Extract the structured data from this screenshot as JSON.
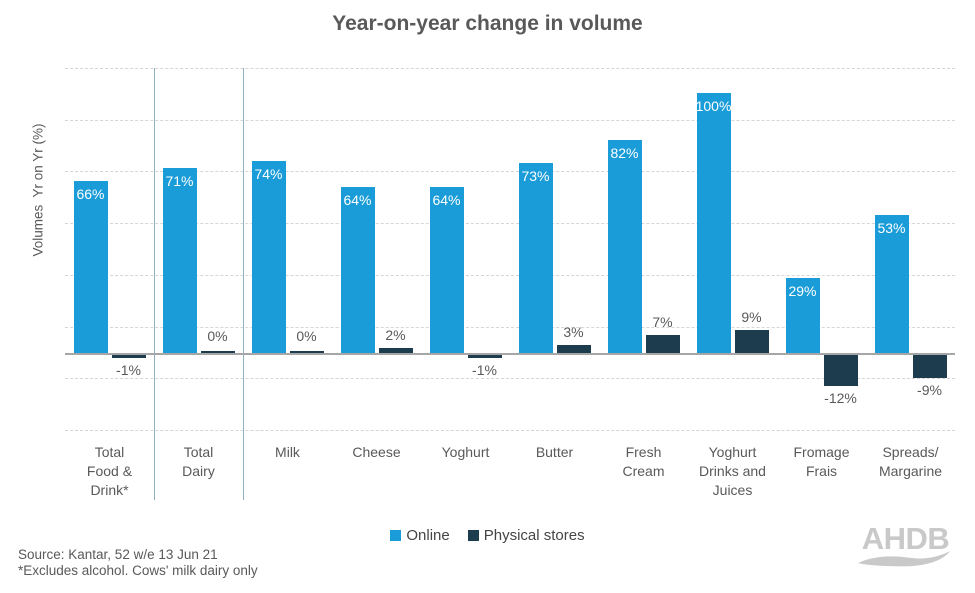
{
  "title": "Year-on-year change in volume",
  "y_axis": {
    "label": "Volumes  Yr on Yr (%)"
  },
  "legend": {
    "items": [
      {
        "label": "Online",
        "color": "#1A9CD8"
      },
      {
        "label": "Physical stores",
        "color": "#1D3C4D"
      }
    ]
  },
  "footer": {
    "source_line1": "Source: Kantar, 52 w/e 13 Jun 21",
    "source_line2": "*Excludes alcohol. Cows' milk dairy only",
    "logo_text": "AHDB"
  },
  "colors": {
    "online": "#1A9CD8",
    "physical_stores": "#1D3C4D",
    "gridline": "#d6d6d6",
    "zero_line": "#a6a6a6",
    "category_separator": "#8fafc2",
    "text": "#595959",
    "inside_bar_label": "#ffffff",
    "logo": "#c9c9c9"
  },
  "chart_data": {
    "type": "bar",
    "title": "Year-on-year change in volume",
    "ylabel": "Volumes Yr on Yr (%)",
    "ylim": [
      -29,
      110
    ],
    "grid": "horizontal dashed, every 20%",
    "legend_position": "bottom center",
    "categories": [
      "Total Food & Drink*",
      "Total Dairy",
      "Milk",
      "Cheese",
      "Yoghurt",
      "Butter",
      "Fresh Cream",
      "Yoghurt Drinks and Juices",
      "Fromage Frais",
      "Spreads/Margarine"
    ],
    "category_label_lines": [
      [
        "Total",
        "Food &",
        "Drink*"
      ],
      [
        "Total",
        "Dairy"
      ],
      [
        "Milk"
      ],
      [
        "Cheese"
      ],
      [
        "Yoghurt"
      ],
      [
        "Butter"
      ],
      [
        "Fresh",
        "Cream"
      ],
      [
        "Yoghurt",
        "Drinks and",
        "Juices"
      ],
      [
        "Fromage",
        "Frais"
      ],
      [
        "Spreads/",
        "Margarine"
      ]
    ],
    "series": [
      {
        "name": "Online",
        "color": "#1A9CD8",
        "values": [
          66,
          71,
          74,
          64,
          64,
          73,
          82,
          100,
          29,
          53
        ],
        "data_labels": [
          "66%",
          "71%",
          "74%",
          "64%",
          "64%",
          "73%",
          "82%",
          "100%",
          "29%",
          "53%"
        ],
        "label_position": "inside-top",
        "label_color": "#ffffff"
      },
      {
        "name": "Physical stores",
        "color": "#1D3C4D",
        "values": [
          -1,
          0,
          0,
          2,
          -1,
          3,
          7,
          9,
          -12,
          -9
        ],
        "data_labels": [
          "-1%",
          "0%",
          "0%",
          "2%",
          "-1%",
          "3%",
          "7%",
          "9%",
          "-12%",
          "-9%"
        ],
        "label_position": "outside-end",
        "label_color": "#595959"
      }
    ],
    "vertical_separators_after_category_index": [
      0,
      1
    ]
  }
}
